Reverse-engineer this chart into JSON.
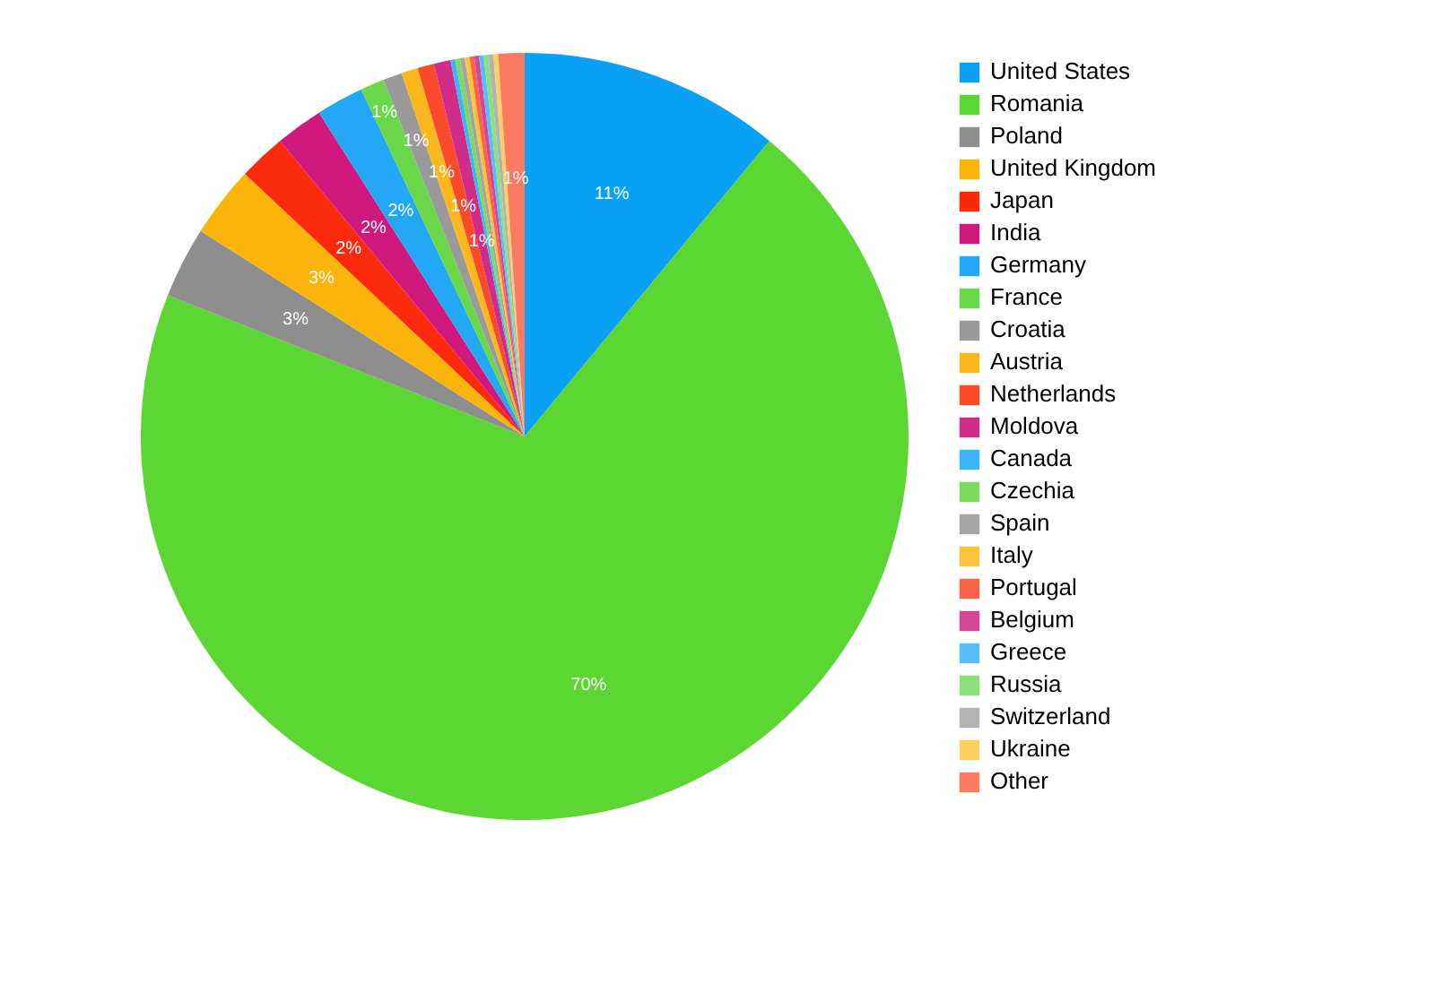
{
  "chart_data": {
    "type": "pie",
    "legend": "right",
    "categories": [
      "United States",
      "Romania",
      "Poland",
      "United Kingdom",
      "Japan",
      "India",
      "Germany",
      "France",
      "Croatia",
      "Austria",
      "Netherlands",
      "Moldova",
      "Canada",
      "Czechia",
      "Spain",
      "Italy",
      "Portugal",
      "Belgium",
      "Greece",
      "Russia",
      "Switzerland",
      "Ukraine",
      "Other"
    ],
    "values": [
      11,
      70,
      3,
      3,
      2,
      2,
      2,
      1,
      0.8,
      0.7,
      0.7,
      0.7,
      0.2,
      0.2,
      0.2,
      0.2,
      0.2,
      0.2,
      0.2,
      0.2,
      0.2,
      0.2,
      1.1
    ],
    "value_labels": [
      "11%",
      "70%",
      "3%",
      "3%",
      "2%",
      "2%",
      "2%",
      "1%",
      "1%",
      "1%",
      "1%",
      "1%",
      null,
      null,
      null,
      null,
      null,
      null,
      null,
      null,
      null,
      null,
      "1%"
    ],
    "colors": [
      "#0aa0f5",
      "#5cd633",
      "#8e8e8e",
      "#fbb40a",
      "#fb2a0c",
      "#d0197f",
      "#22a8f5",
      "#6bd84a",
      "#9a9a9a",
      "#fbb81e",
      "#fb4a2a",
      "#d02c8a",
      "#3cb4f8",
      "#7dda5e",
      "#a5a5a5",
      "#fbc43c",
      "#fb6448",
      "#d44698",
      "#55bff8",
      "#8ee07a",
      "#b3b3b3",
      "#fbd060",
      "#fb7a62"
    ]
  }
}
